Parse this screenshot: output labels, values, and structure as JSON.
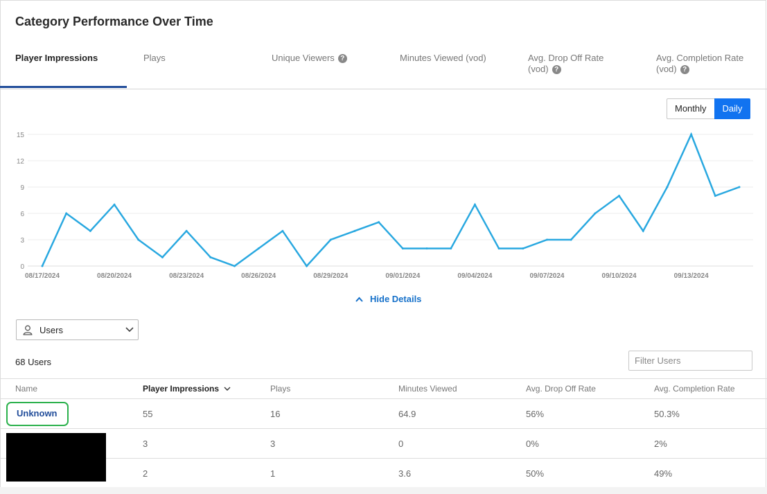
{
  "title": "Category Performance Over Time",
  "tabs": [
    {
      "label": "Player Impressions",
      "active": true,
      "help": false
    },
    {
      "label": "Plays",
      "active": false,
      "help": false
    },
    {
      "label": "Unique Viewers",
      "active": false,
      "help": true
    },
    {
      "label": "Minutes Viewed (vod)",
      "active": false,
      "help": false
    },
    {
      "label": "Avg. Drop Off Rate (vod)",
      "active": false,
      "help": true
    },
    {
      "label": "Avg. Completion Rate (vod)",
      "active": false,
      "help": true
    }
  ],
  "toggle": {
    "monthly": "Monthly",
    "daily": "Daily",
    "selected": "Daily"
  },
  "colors": {
    "accent": "#1173f0",
    "line": "#29a8e0",
    "tab_underline": "#1f4b99",
    "highlight": "#2bb14c"
  },
  "chart_data": {
    "type": "line",
    "x": [
      "08/17/2024",
      "08/18/2024",
      "08/19/2024",
      "08/20/2024",
      "08/21/2024",
      "08/22/2024",
      "08/23/2024",
      "08/24/2024",
      "08/25/2024",
      "08/26/2024",
      "08/27/2024",
      "08/28/2024",
      "08/29/2024",
      "08/30/2024",
      "08/31/2024",
      "09/01/2024",
      "09/02/2024",
      "09/03/2024",
      "09/04/2024",
      "09/05/2024",
      "09/06/2024",
      "09/07/2024",
      "09/08/2024",
      "09/09/2024",
      "09/10/2024",
      "09/11/2024",
      "09/12/2024",
      "09/13/2024",
      "09/14/2024",
      "09/15/2024"
    ],
    "values": [
      0,
      6,
      4,
      7,
      3,
      1,
      4,
      1,
      0,
      2,
      4,
      0,
      3,
      4,
      5,
      2,
      2,
      2,
      7,
      2,
      2,
      3,
      3,
      6,
      8,
      4,
      9,
      15,
      8,
      9
    ],
    "x_tick_labels": [
      "08/17/2024",
      "08/20/2024",
      "08/23/2024",
      "08/26/2024",
      "08/29/2024",
      "09/01/2024",
      "09/04/2024",
      "09/07/2024",
      "09/10/2024",
      "09/13/2024"
    ],
    "y_ticks": [
      0,
      3,
      6,
      9,
      12,
      15
    ],
    "ylim": [
      0,
      15
    ],
    "grid": true,
    "legend": "none"
  },
  "hide_details": "Hide Details",
  "user_select": {
    "icon": "user-icon",
    "value": "Users"
  },
  "users_count": "68 Users",
  "filter": {
    "placeholder": "Filter Users"
  },
  "table": {
    "columns": [
      "Name",
      "Player Impressions",
      "Plays",
      "Minutes Viewed",
      "Avg. Drop Off Rate",
      "Avg. Completion Rate"
    ],
    "sorted_column": "Player Impressions",
    "rows": [
      {
        "name": "Unknown",
        "impressions": "55",
        "plays": "16",
        "minutes": "64.9",
        "drop_off": "56%",
        "completion": "50.3%"
      },
      {
        "name": "",
        "impressions": "3",
        "plays": "3",
        "minutes": "0",
        "drop_off": "0%",
        "completion": "2%"
      },
      {
        "name": "",
        "impressions": "2",
        "plays": "1",
        "minutes": "3.6",
        "drop_off": "50%",
        "completion": "49%"
      }
    ]
  }
}
